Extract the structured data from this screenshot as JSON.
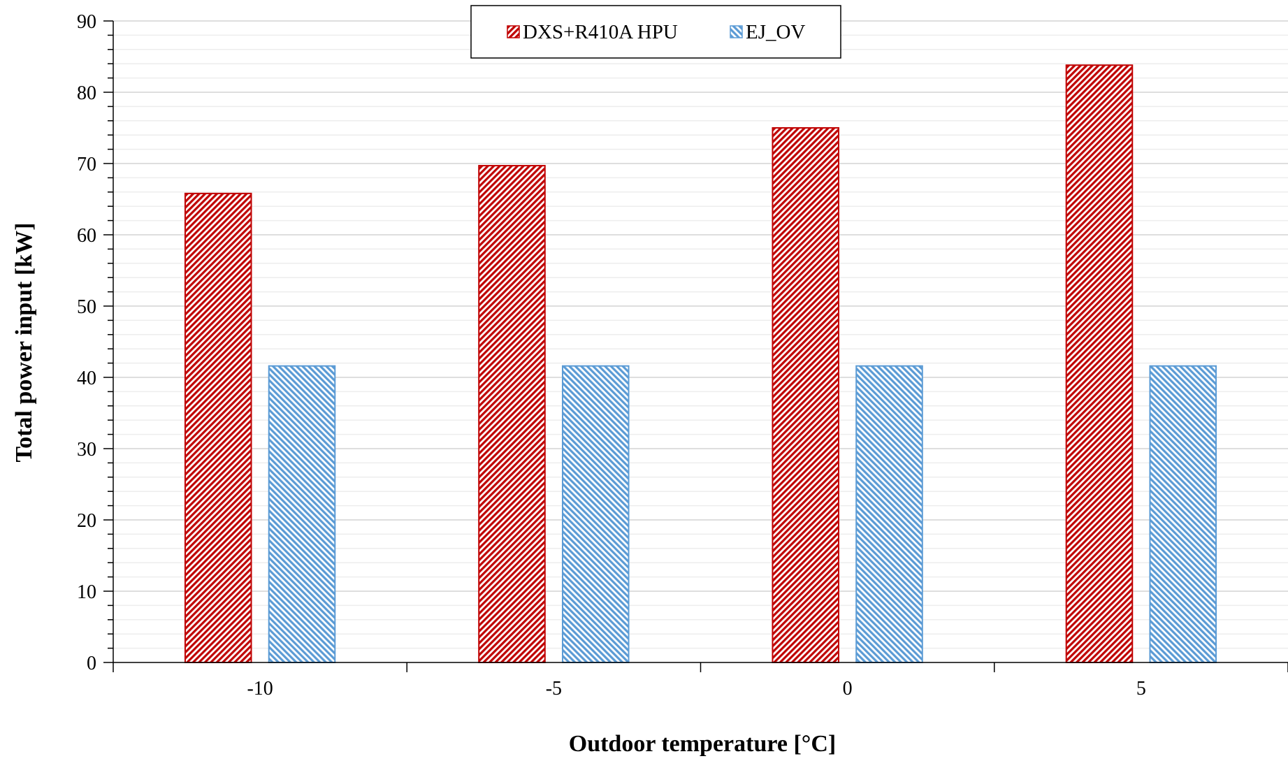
{
  "chart_data": {
    "type": "bar",
    "categories": [
      "-10",
      "-5",
      "0",
      "5"
    ],
    "series": [
      {
        "name": "DXS+R410A HPU",
        "values": [
          65.8,
          69.7,
          75.0,
          83.8
        ],
        "color": "#C00000",
        "pattern": "diagonal-hatch-down"
      },
      {
        "name": "EJ_OV",
        "values": [
          41.6,
          41.6,
          41.6,
          41.6
        ],
        "color": "#5B9BD5",
        "pattern": "diagonal-hatch-up"
      }
    ],
    "xlabel": "Outdoor temperature [°C]",
    "ylabel": "Total power input [kW]",
    "ylim": [
      0,
      90
    ],
    "yticks": [
      "0",
      "10",
      "20",
      "30",
      "40",
      "50",
      "60",
      "70",
      "80",
      "90"
    ],
    "minor_ticks_per_major": 5,
    "grid": true,
    "legend": "top-center"
  }
}
